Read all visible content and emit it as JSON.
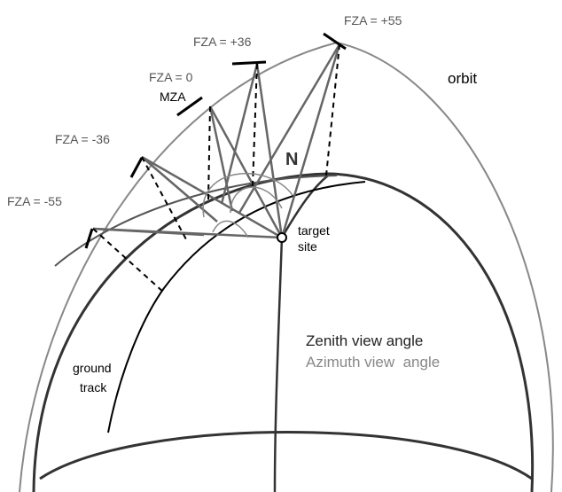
{
  "labels": {
    "fza_p55": "FZA = +55",
    "fza_p36": "FZA = +36",
    "fza_0": "FZA = 0",
    "mza": "MZA",
    "fza_m36": "FZA = -36",
    "fza_m55": "FZA = -55",
    "orbit": "orbit",
    "north": "N",
    "target_site": [
      "target",
      "site"
    ],
    "zenith": "Zenith view angle",
    "azimuth": "Azimuth view  angle",
    "ground_track": [
      "ground",
      "track"
    ]
  }
}
